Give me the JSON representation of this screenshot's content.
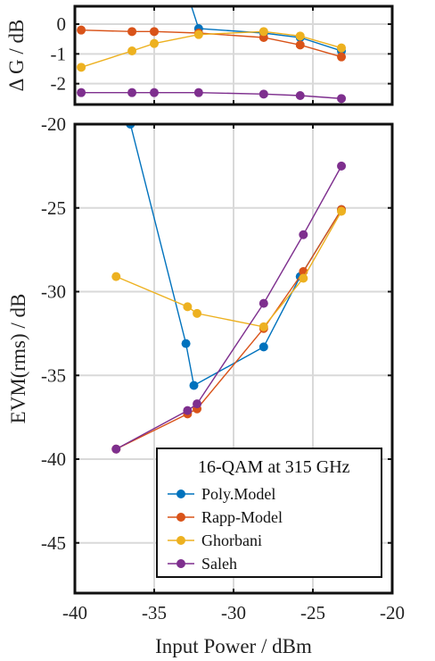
{
  "chart_data": [
    {
      "type": "line",
      "ylabel": "Δ G / dB",
      "xlim": [
        -40,
        -20
      ],
      "ylim": [
        -2.7,
        0.6
      ],
      "yticks": [
        -2,
        -1,
        0
      ],
      "grid": true,
      "series": [
        {
          "name": "Poly.Model",
          "color": "#0072BD",
          "x": [
            -33.2,
            -32.2,
            -28.1,
            -25.8,
            -23.2
          ],
          "y": [
            1.5,
            -0.15,
            -0.3,
            -0.45,
            -0.9
          ]
        },
        {
          "name": "Rapp-Model",
          "color": "#D95319",
          "x": [
            -39.6,
            -36.4,
            -35.0,
            -32.2,
            -28.1,
            -25.8,
            -23.2
          ],
          "y": [
            -0.2,
            -0.25,
            -0.25,
            -0.3,
            -0.45,
            -0.7,
            -1.1
          ]
        },
        {
          "name": "Ghorbani",
          "color": "#EDB120",
          "x": [
            -39.6,
            -36.4,
            -35.0,
            -32.2,
            -28.1,
            -25.8,
            -23.2
          ],
          "y": [
            -1.45,
            -0.9,
            -0.65,
            -0.35,
            -0.25,
            -0.4,
            -0.8
          ]
        },
        {
          "name": "Saleh",
          "color": "#7E2F8E",
          "x": [
            -39.6,
            -36.4,
            -35.0,
            -32.2,
            -28.1,
            -25.8,
            -23.2
          ],
          "y": [
            -2.3,
            -2.3,
            -2.3,
            -2.3,
            -2.35,
            -2.4,
            -2.5
          ]
        }
      ]
    },
    {
      "type": "line",
      "xlabel": "Input Power / dBm",
      "ylabel": "EVM(rms) / dB",
      "xlim": [
        -40,
        -20
      ],
      "ylim": [
        -48,
        -20
      ],
      "xticks": [
        -40,
        -35,
        -30,
        -25,
        -20
      ],
      "yticks": [
        -45,
        -40,
        -35,
        -30,
        -25,
        -20
      ],
      "grid": true,
      "legend": {
        "title": "16-QAM at 315 GHz",
        "position": "bottom-right"
      },
      "series": [
        {
          "name": "Poly.Model",
          "color": "#0072BD",
          "x": [
            -36.5,
            -33.0,
            -32.5,
            -28.1,
            -25.8,
            -23.2
          ],
          "y": [
            -20,
            -33.1,
            -35.6,
            -33.3,
            -29.1,
            -25.1
          ]
        },
        {
          "name": "Rapp-Model",
          "color": "#D95319",
          "x": [
            -37.4,
            -32.9,
            -32.3,
            -28.1,
            -25.6,
            -23.2
          ],
          "y": [
            -39.4,
            -37.3,
            -37.0,
            -32.2,
            -28.8,
            -25.1
          ]
        },
        {
          "name": "Ghorbani",
          "color": "#EDB120",
          "x": [
            -37.4,
            -32.9,
            -32.3,
            -28.1,
            -25.6,
            -23.2
          ],
          "y": [
            -29.1,
            -30.9,
            -31.3,
            -32.1,
            -29.2,
            -25.2
          ]
        },
        {
          "name": "Saleh",
          "color": "#7E2F8E",
          "x": [
            -37.4,
            -32.9,
            -32.3,
            -28.1,
            -25.6,
            -23.2
          ],
          "y": [
            -39.4,
            -37.1,
            -36.7,
            -30.7,
            -26.6,
            -22.5
          ]
        }
      ]
    }
  ]
}
